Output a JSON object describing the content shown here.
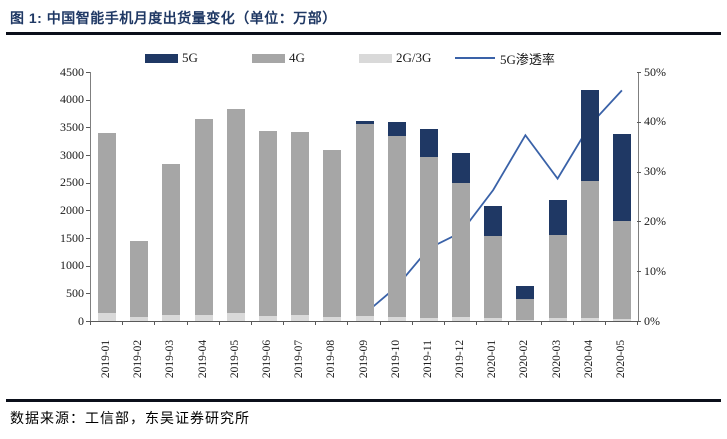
{
  "header": {
    "title": "图 1:  中国智能手机月度出货量变化（单位：万部）"
  },
  "footer": {
    "source": "数据来源：工信部，东吴证券研究所"
  },
  "colors": {
    "accent_navy": "#1f3864",
    "bar_5g": "#1f3864",
    "bar_4g": "#a6a6a6",
    "bar_2g3g": "#d9d9d9",
    "penetration_line": "#3a62a8",
    "rule_line": "#0b0f1a",
    "axis_line": "#595959"
  },
  "legend": [
    {
      "label": "5G"
    },
    {
      "label": "4G"
    },
    {
      "label": "2G/3G"
    },
    {
      "label": "5G渗透率"
    }
  ],
  "chart_data": {
    "type": "combo: stacked bar + line",
    "title": "中国智能手机月度出货量变化（单位：万部）",
    "categories": [
      "2019-01",
      "2019-02",
      "2019-03",
      "2019-04",
      "2019-05",
      "2019-06",
      "2019-07",
      "2019-08",
      "2019-09",
      "2019-10",
      "2019-11",
      "2019-12",
      "2020-01",
      "2020-02",
      "2020-03",
      "2020-04",
      "2020-05"
    ],
    "series": [
      {
        "name": "2G/3G",
        "type": "bar",
        "stack_order": 1,
        "color": "#d9d9d9",
        "values": [
          140,
          70,
          110,
          110,
          140,
          100,
          110,
          80,
          90,
          70,
          60,
          70,
          50,
          20,
          60,
          50,
          40
        ]
      },
      {
        "name": "4G",
        "type": "bar",
        "stack_order": 2,
        "color": "#a6a6a6",
        "values": [
          3260,
          1380,
          2730,
          3550,
          3700,
          3340,
          3310,
          3010,
          3480,
          3280,
          2910,
          2430,
          1480,
          380,
          1500,
          2480,
          1760
        ]
      },
      {
        "name": "5G",
        "type": "bar",
        "stack_order": 3,
        "color": "#1f3864",
        "values": [
          0,
          0,
          0,
          0,
          0,
          0,
          0,
          0,
          50,
          250,
          510,
          540,
          550,
          240,
          620,
          1640,
          1580
        ]
      },
      {
        "name": "5G渗透率",
        "type": "line",
        "axis": "right",
        "color": "#3a62a8",
        "values_pct": [
          null,
          null,
          null,
          null,
          null,
          null,
          null,
          null,
          1.4,
          6.9,
          14.6,
          17.8,
          26.3,
          37.3,
          28.6,
          39.3,
          46.3
        ]
      }
    ],
    "totals": [
      3400,
      1450,
      2840,
      3660,
      3840,
      3440,
      3420,
      3090,
      3620,
      3600,
      3480,
      3040,
      2080,
      640,
      2180,
      4170,
      3380
    ],
    "left_axis": {
      "min": 0,
      "max": 4500,
      "step": 500,
      "ticks": [
        "4500",
        "4000",
        "3500",
        "3000",
        "2500",
        "2000",
        "1500",
        "1000",
        "500",
        "0"
      ]
    },
    "right_axis": {
      "min": 0,
      "max": 50,
      "step": 10,
      "ticks": [
        "50%",
        "40%",
        "30%",
        "20%",
        "10%",
        "0%"
      ]
    },
    "grid": false,
    "legend_position": "top"
  }
}
